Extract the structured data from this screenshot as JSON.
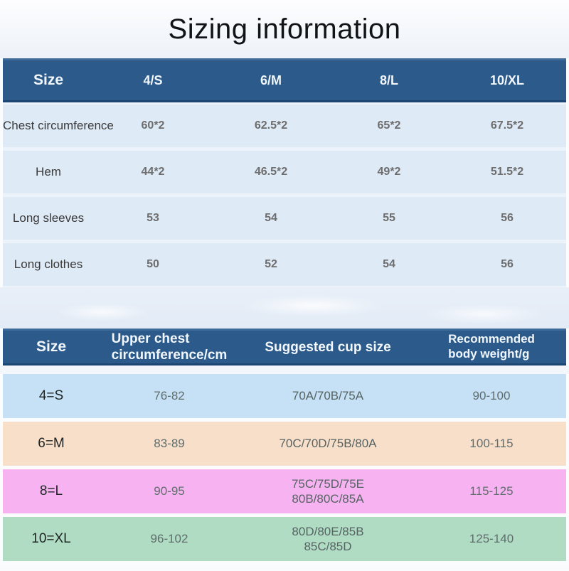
{
  "page": {
    "title": "Sizing information"
  },
  "colors": {
    "header_bar": "#2b5a8b",
    "header_bar_border_dark": "#1c4671",
    "table1_row_bg": "#dfeaf7",
    "table1_gap_bg": "#edf3fa",
    "row_s_bg": "#c6e1f5",
    "row_m_bg": "#f8dfc9",
    "row_l_bg": "#f7b3f1",
    "row_xl_bg": "#b0dcc3",
    "header_text": "#f2f7fc",
    "value_text": "#6d6d6d"
  },
  "size_table": {
    "headers": {
      "size": "Size",
      "s": "4/S",
      "m": "6/M",
      "l": "8/L",
      "xl": "10/XL"
    },
    "rows": [
      {
        "label": "Chest circumference",
        "values": [
          "60*2",
          "62.5*2",
          "65*2",
          "67.5*2"
        ]
      },
      {
        "label": "Hem",
        "values": [
          "44*2",
          "46.5*2",
          "49*2",
          "51.5*2"
        ]
      },
      {
        "label": "Long sleeves",
        "values": [
          "53",
          "54",
          "55",
          "56"
        ]
      },
      {
        "label": "Long clothes",
        "values": [
          "50",
          "52",
          "54",
          "56"
        ]
      }
    ]
  },
  "cup_table": {
    "headers": {
      "size": "Size",
      "chest": "Upper chest\ncircumference/cm",
      "cup": "Suggested cup size",
      "weight": "Recommended\nbody weight/g"
    },
    "rows": [
      {
        "size": "4=S",
        "chest": "76-82",
        "cup": "70A/70B/75A",
        "weight": "90-100"
      },
      {
        "size": "6=M",
        "chest": "83-89",
        "cup": "70C/70D/75B/80A",
        "weight": "100-115"
      },
      {
        "size": "8=L",
        "chest": "90-95",
        "cup": "75C/75D/75E\n80B/80C/85A",
        "weight": "115-125"
      },
      {
        "size": "10=XL",
        "chest": "96-102",
        "cup": "80D/80E/85B\n85C/85D",
        "weight": "125-140"
      }
    ]
  }
}
